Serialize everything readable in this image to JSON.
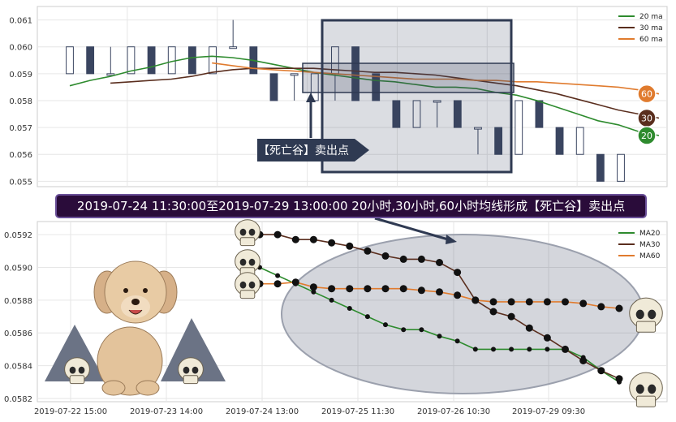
{
  "top_chart": {
    "y_ticks": [
      "0.061",
      "0.060",
      "0.059",
      "0.058",
      "0.057",
      "0.056",
      "0.055"
    ],
    "legend": [
      {
        "label": "20 ma",
        "color": "#2e8b2e"
      },
      {
        "label": "30 ma",
        "color": "#5a2e1e"
      },
      {
        "label": "60 ma",
        "color": "#e07b2e"
      }
    ],
    "end_badges": [
      {
        "label": "60",
        "color": "#e07b2e"
      },
      {
        "label": "30",
        "color": "#5a2e1e"
      },
      {
        "label": "20",
        "color": "#2e8b2e"
      }
    ],
    "callout": "【死亡谷】卖出点"
  },
  "banner": "2019-07-24 11:30:00至2019-07-29 13:00:00 20小时,30小时,60小时均线形成【死亡谷】卖出点",
  "bottom_chart": {
    "y_ticks": [
      "0.0592",
      "0.0590",
      "0.0588",
      "0.0586",
      "0.0584",
      "0.0582"
    ],
    "x_ticks": [
      "2019-07-22 15:00",
      "2019-07-23 14:00",
      "2019-07-24 13:00",
      "2019-07-25 11:30",
      "2019-07-26 10:30",
      "2019-07-29 09:30"
    ],
    "legend": [
      {
        "label": "MA20",
        "color": "#2e8b2e"
      },
      {
        "label": "MA30",
        "color": "#5a2e1e"
      },
      {
        "label": "MA60",
        "color": "#e07b2e"
      }
    ]
  },
  "chart_data": [
    {
      "type": "candlestick",
      "ylim": [
        0.0548,
        0.0615
      ],
      "yticks": [
        0.061,
        0.06,
        0.059,
        0.058,
        0.057,
        0.056,
        0.055
      ],
      "up_color": "#ffffff",
      "down_color": "#3a4560",
      "candles": [
        {
          "o": 0.059,
          "h": 0.06,
          "l": 0.059,
          "c": 0.06
        },
        {
          "o": 0.06,
          "h": 0.06,
          "l": 0.059,
          "c": 0.059
        },
        {
          "o": 0.059,
          "h": 0.06,
          "l": 0.059,
          "c": 0.059
        },
        {
          "o": 0.059,
          "h": 0.06,
          "l": 0.059,
          "c": 0.06
        },
        {
          "o": 0.06,
          "h": 0.06,
          "l": 0.059,
          "c": 0.059
        },
        {
          "o": 0.059,
          "h": 0.06,
          "l": 0.059,
          "c": 0.06
        },
        {
          "o": 0.06,
          "h": 0.06,
          "l": 0.059,
          "c": 0.059
        },
        {
          "o": 0.059,
          "h": 0.06,
          "l": 0.059,
          "c": 0.06
        },
        {
          "o": 0.06,
          "h": 0.061,
          "l": 0.06,
          "c": 0.06
        },
        {
          "o": 0.06,
          "h": 0.06,
          "l": 0.059,
          "c": 0.059
        },
        {
          "o": 0.059,
          "h": 0.059,
          "l": 0.058,
          "c": 0.058
        },
        {
          "o": 0.059,
          "h": 0.059,
          "l": 0.058,
          "c": 0.059
        },
        {
          "o": 0.058,
          "h": 0.059,
          "l": 0.058,
          "c": 0.059
        },
        {
          "o": 0.059,
          "h": 0.06,
          "l": 0.058,
          "c": 0.06
        },
        {
          "o": 0.06,
          "h": 0.06,
          "l": 0.058,
          "c": 0.058
        },
        {
          "o": 0.059,
          "h": 0.059,
          "l": 0.058,
          "c": 0.058
        },
        {
          "o": 0.058,
          "h": 0.058,
          "l": 0.057,
          "c": 0.057
        },
        {
          "o": 0.057,
          "h": 0.058,
          "l": 0.057,
          "c": 0.058
        },
        {
          "o": 0.058,
          "h": 0.058,
          "l": 0.057,
          "c": 0.058
        },
        {
          "o": 0.058,
          "h": 0.058,
          "l": 0.057,
          "c": 0.057
        },
        {
          "o": 0.057,
          "h": 0.057,
          "l": 0.056,
          "c": 0.057
        },
        {
          "o": 0.057,
          "h": 0.057,
          "l": 0.056,
          "c": 0.056
        },
        {
          "o": 0.056,
          "h": 0.058,
          "l": 0.056,
          "c": 0.058
        },
        {
          "o": 0.058,
          "h": 0.058,
          "l": 0.057,
          "c": 0.057
        },
        {
          "o": 0.057,
          "h": 0.057,
          "l": 0.056,
          "c": 0.056
        },
        {
          "o": 0.056,
          "h": 0.057,
          "l": 0.056,
          "c": 0.057
        },
        {
          "o": 0.056,
          "h": 0.056,
          "l": 0.055,
          "c": 0.055
        },
        {
          "o": 0.055,
          "h": 0.056,
          "l": 0.055,
          "c": 0.056
        }
      ],
      "ma_series": [
        {
          "name": "20 ma",
          "color": "#2e8b2e",
          "values": [
            0.05855,
            0.05875,
            0.0589,
            0.0591,
            0.05925,
            0.05945,
            0.0596,
            0.05965,
            0.0596,
            0.0595,
            0.05935,
            0.0592,
            0.05905,
            0.05895,
            0.05885,
            0.05875,
            0.0587,
            0.0586,
            0.0585,
            0.0585,
            0.05845,
            0.0583,
            0.0582,
            0.058,
            0.05775,
            0.0575,
            0.05725,
            0.0571,
            0.05685,
            0.0567
          ]
        },
        {
          "name": "30 ma",
          "color": "#5a2e1e",
          "values": [
            0.05865,
            0.0587,
            0.05875,
            0.0588,
            0.0589,
            0.05905,
            0.05915,
            0.0592,
            0.0592,
            0.0592,
            0.0592,
            0.05915,
            0.0591,
            0.05905,
            0.05905,
            0.059,
            0.05895,
            0.05885,
            0.05875,
            0.05865,
            0.05855,
            0.0584,
            0.05825,
            0.05805,
            0.05785,
            0.05765,
            0.0575,
            0.05735
          ]
        },
        {
          "name": "60 ma",
          "color": "#e07b2e",
          "values": [
            0.0594,
            0.0593,
            0.0592,
            0.05915,
            0.0591,
            0.05905,
            0.059,
            0.05895,
            0.0589,
            0.05885,
            0.0588,
            0.0588,
            0.0588,
            0.05875,
            0.05875,
            0.0587,
            0.0587,
            0.05865,
            0.0586,
            0.05855,
            0.0585,
            0.0584,
            0.05825
          ]
        }
      ]
    },
    {
      "type": "line",
      "ylim": [
        0.05818,
        0.05928
      ],
      "yticks": [
        0.0592,
        0.059,
        0.0588,
        0.0586,
        0.0584,
        0.0582
      ],
      "xticks": [
        "2019-07-22 15:00",
        "2019-07-23 14:00",
        "2019-07-24 13:00",
        "2019-07-25 11:30",
        "2019-07-26 10:30",
        "2019-07-29 09:30"
      ],
      "series": [
        {
          "name": "MA20",
          "color": "#2e8b2e",
          "start_index": 0,
          "values": [
            0.059,
            0.05895,
            0.0589,
            0.05885,
            0.0588,
            0.05875,
            0.0587,
            0.05865,
            0.05862,
            0.05862,
            0.05858,
            0.05855,
            0.0585,
            0.0585,
            0.0585,
            0.0585,
            0.0585,
            0.0585,
            0.05845,
            0.05837,
            0.0583
          ]
        },
        {
          "name": "MA30",
          "color": "#5a2e1e",
          "start_index": 0,
          "values": [
            0.0592,
            0.0592,
            0.05917,
            0.05917,
            0.05915,
            0.05913,
            0.0591,
            0.05907,
            0.05905,
            0.05905,
            0.05903,
            0.05897,
            0.0588,
            0.05873,
            0.0587,
            0.05863,
            0.05857,
            0.0585,
            0.05843,
            0.05837,
            0.05832
          ]
        },
        {
          "name": "MA60",
          "color": "#e07b2e",
          "start_index": 0,
          "values": [
            0.0589,
            0.0589,
            0.05891,
            0.05888,
            0.05887,
            0.05887,
            0.05887,
            0.05887,
            0.05887,
            0.05886,
            0.05885,
            0.05883,
            0.0588,
            0.05879,
            0.05879,
            0.05879,
            0.05879,
            0.05879,
            0.05878,
            0.05876,
            0.05875
          ]
        }
      ]
    }
  ]
}
